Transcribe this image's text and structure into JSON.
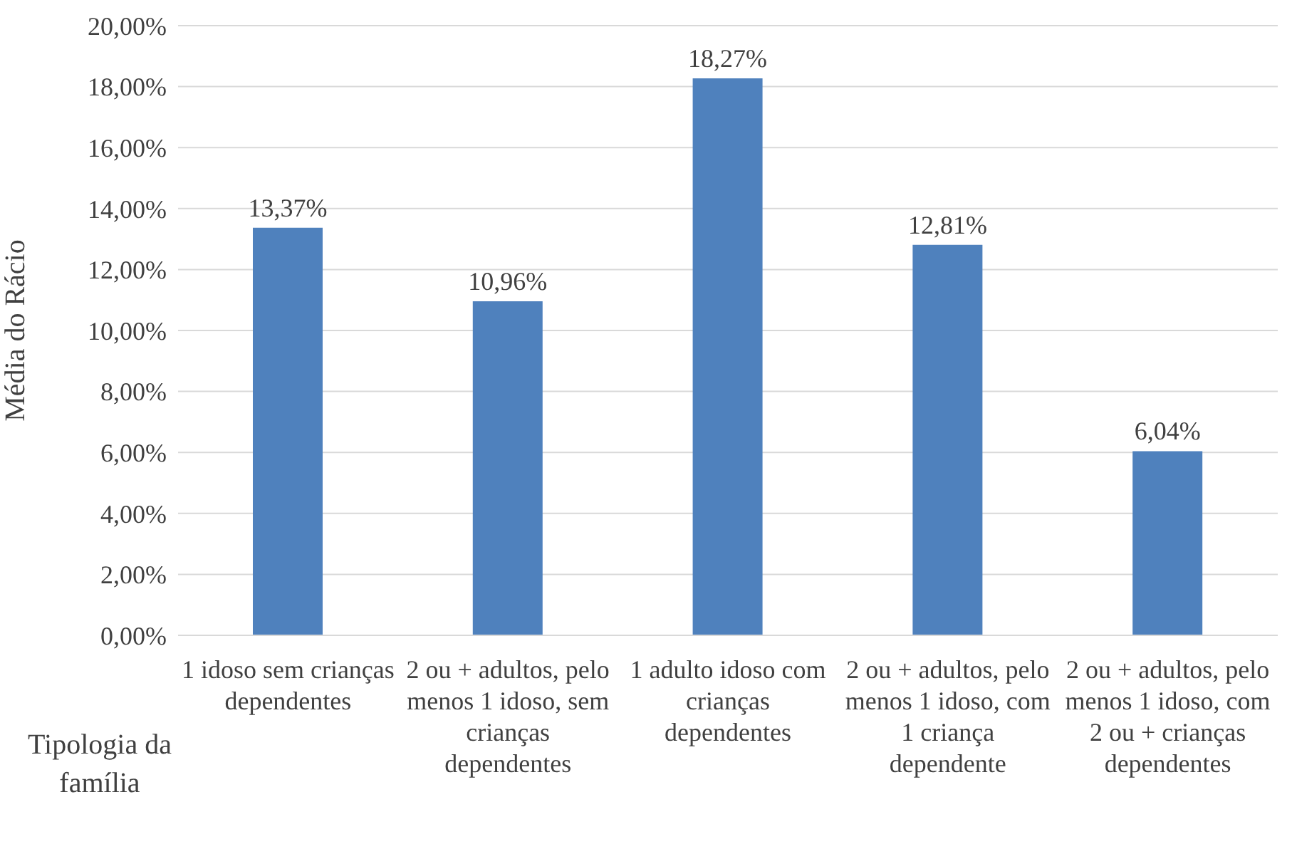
{
  "chart_data": {
    "type": "bar",
    "categories": [
      "1 idoso sem crianças dependentes",
      "2 ou + adultos, pelo menos 1 idoso, sem crianças dependentes",
      "1 adulto idoso com crianças dependentes",
      "2 ou + adultos, pelo menos 1 idoso, com 1 criança dependente",
      "2 ou + adultos, pelo menos 1 idoso, com 2 ou + crianças dependentes"
    ],
    "values": [
      13.37,
      10.96,
      18.27,
      12.81,
      6.04
    ],
    "value_labels": [
      "13,37%",
      "10,96%",
      "18,27%",
      "12,81%",
      "6,04%"
    ],
    "color": "#4f81bd",
    "xlabel": "Tipologia da família",
    "ylabel": "Média do Rácio",
    "ylim": [
      0,
      20
    ],
    "yticks": [
      {
        "value": 0,
        "label": "0,00%"
      },
      {
        "value": 2,
        "label": "2,00%"
      },
      {
        "value": 4,
        "label": "4,00%"
      },
      {
        "value": 6,
        "label": "6,00%"
      },
      {
        "value": 8,
        "label": "8,00%"
      },
      {
        "value": 10,
        "label": "10,00%"
      },
      {
        "value": 12,
        "label": "12,00%"
      },
      {
        "value": 14,
        "label": "14,00%"
      },
      {
        "value": 16,
        "label": "16,00%"
      },
      {
        "value": 18,
        "label": "18,00%"
      },
      {
        "value": 20,
        "label": "20,00%"
      }
    ],
    "grid": "y"
  }
}
